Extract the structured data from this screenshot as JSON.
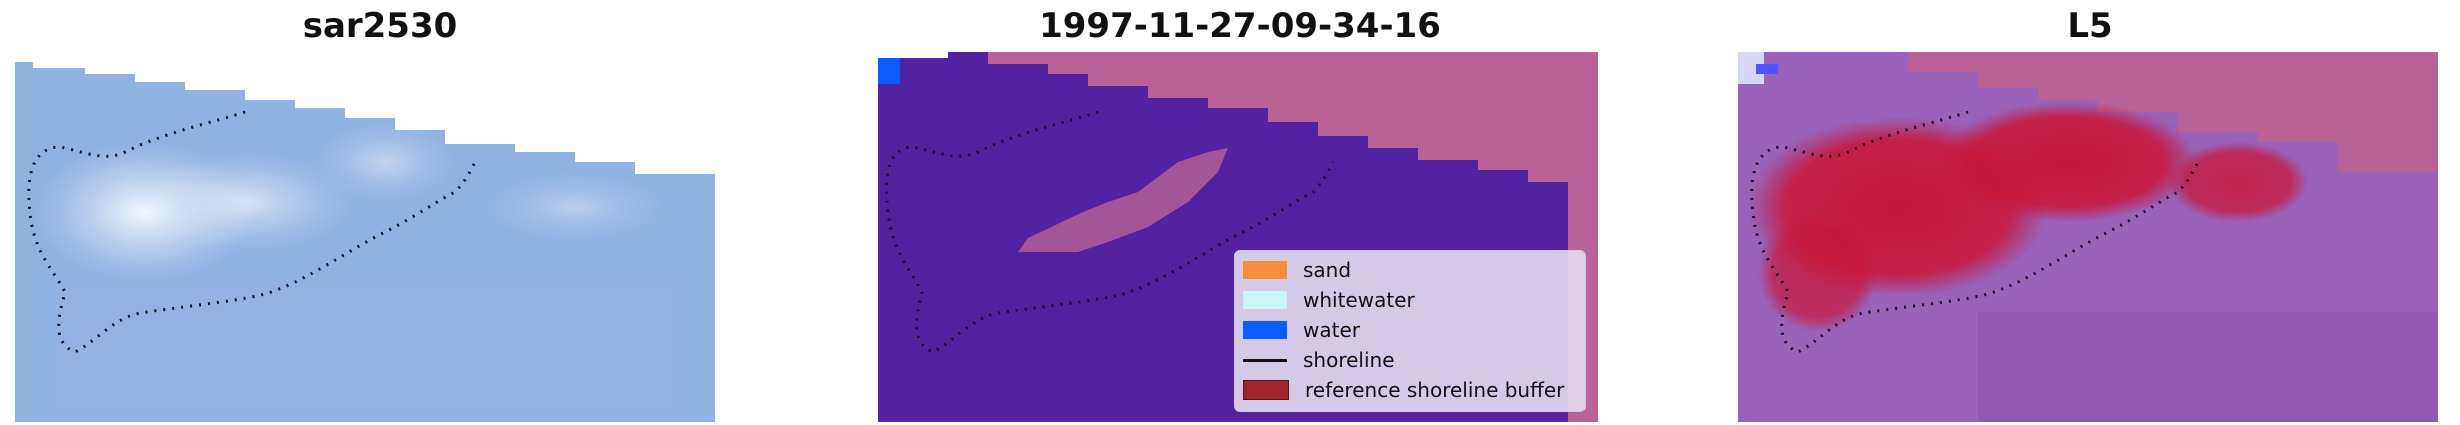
{
  "panels": [
    {
      "title": "sar2530"
    },
    {
      "title": "1997-11-27-09-34-16"
    },
    {
      "title": "L5"
    }
  ],
  "legend": {
    "items": [
      {
        "label": "sand",
        "color": "#f58d3f",
        "kind": "patch"
      },
      {
        "label": "whitewater",
        "color": "#ccf7f7",
        "kind": "patch"
      },
      {
        "label": "water",
        "color": "#0a5cff",
        "kind": "patch"
      },
      {
        "label": "shoreline",
        "color": "#111111",
        "kind": "line"
      },
      {
        "label": "reference shoreline buffer",
        "color": "#a0242a",
        "kind": "patch"
      }
    ]
  },
  "colors": {
    "rgb_base": "#8fb2e0",
    "class_water_overlay": "#5322a0",
    "class_land_overlay": "#b86295",
    "prob_base": "#9a62b8",
    "prob_high": "#c8163a"
  }
}
